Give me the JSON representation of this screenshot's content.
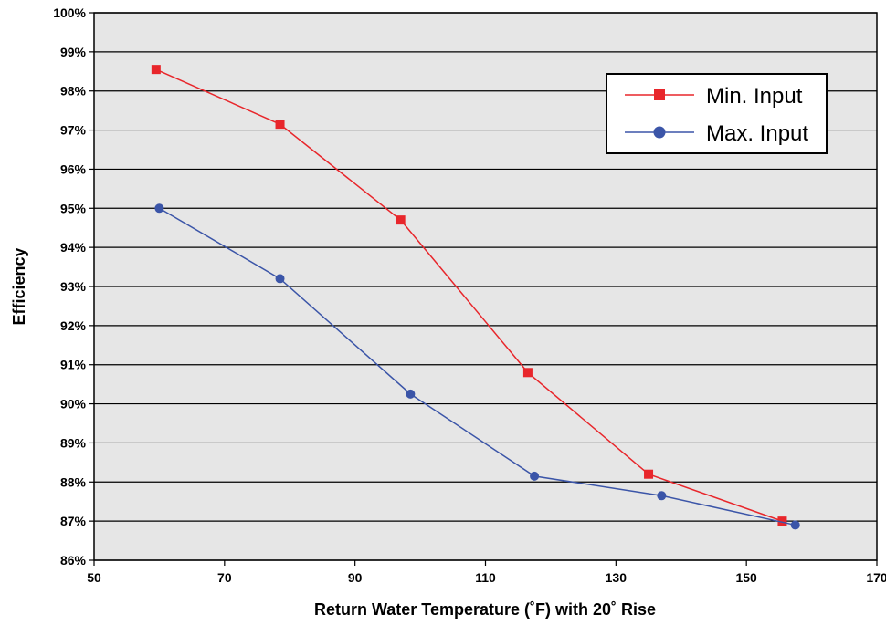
{
  "chart_data": {
    "type": "line",
    "title": "",
    "xlabel": "Return Water Temperature (˚F) with 20˚ Rise",
    "ylabel": "Efficiency",
    "xlim": [
      50,
      170
    ],
    "ylim": [
      86,
      100
    ],
    "x_ticks": [
      50,
      70,
      90,
      110,
      130,
      150,
      170
    ],
    "y_ticks": [
      86,
      87,
      88,
      89,
      90,
      91,
      92,
      93,
      94,
      95,
      96,
      97,
      98,
      99,
      100
    ],
    "y_tick_labels": [
      "86%",
      "87%",
      "88%",
      "89%",
      "90%",
      "91%",
      "92%",
      "93%",
      "94%",
      "95%",
      "96%",
      "97%",
      "98%",
      "99%",
      "100%"
    ],
    "grid": "horizontal",
    "legend_position": "top-right",
    "plot_background": "#e6e6e6",
    "series": [
      {
        "name": "Min. Input",
        "color": "#e8262b",
        "marker": "square",
        "x": [
          59.5,
          78.5,
          97.0,
          116.5,
          135.0,
          155.5
        ],
        "y": [
          98.55,
          97.15,
          94.7,
          90.8,
          88.2,
          87.0
        ]
      },
      {
        "name": "Max. Input",
        "color": "#3b55a8",
        "marker": "circle",
        "x": [
          60.0,
          78.5,
          98.5,
          117.5,
          137.0,
          157.5
        ],
        "y": [
          95.0,
          93.2,
          90.25,
          88.15,
          87.65,
          86.9
        ]
      }
    ]
  }
}
